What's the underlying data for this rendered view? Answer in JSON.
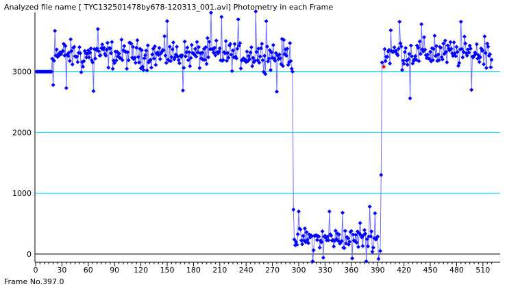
{
  "header": {
    "title": "Analyzed file name [ TYC132501478by678-120313_001.avi]    Photometry in each Frame"
  },
  "status": {
    "frame_label": "Frame No.397.0"
  },
  "colors": {
    "series": "#0000ff",
    "highlight": "#ff0000",
    "gridline": "#00e6ff",
    "axis": "#000000",
    "background": "#ffffff"
  },
  "chart_data": {
    "type": "line",
    "title": "Photometry in each Frame",
    "xlabel": "",
    "ylabel": "",
    "xlim": [
      0,
      520
    ],
    "ylim": [
      -150,
      3970
    ],
    "x_ticks": [
      0,
      30,
      60,
      90,
      120,
      150,
      180,
      210,
      240,
      270,
      300,
      330,
      360,
      390,
      420,
      450,
      480,
      510
    ],
    "y_ticks": [
      0,
      1000,
      2000,
      3000
    ],
    "grid": "horizontal at y ticks",
    "highlight_point": {
      "x": 397,
      "y": 3080
    },
    "series": [
      {
        "name": "",
        "segments": [
          {
            "x_start": 1,
            "x_end": 18,
            "base": 3000,
            "amp": 0
          },
          {
            "x_start": 19,
            "x_end": 294,
            "base": 3280,
            "amp": 260
          },
          {
            "x_start": 295,
            "x_end": 390,
            "base": 250,
            "amp": 190
          },
          {
            "x_start": 397,
            "x_end": 520,
            "base": 3300,
            "amp": 260
          }
        ],
        "points": [
          {
            "x": 20,
            "y": 2780
          },
          {
            "x": 22,
            "y": 3670
          },
          {
            "x": 35,
            "y": 2730
          },
          {
            "x": 52,
            "y": 2990
          },
          {
            "x": 66,
            "y": 2680
          },
          {
            "x": 71,
            "y": 3700
          },
          {
            "x": 150,
            "y": 3830
          },
          {
            "x": 168,
            "y": 2690
          },
          {
            "x": 200,
            "y": 3970
          },
          {
            "x": 212,
            "y": 3900
          },
          {
            "x": 231,
            "y": 3860
          },
          {
            "x": 251,
            "y": 3990
          },
          {
            "x": 263,
            "y": 3830
          },
          {
            "x": 275,
            "y": 2670
          },
          {
            "x": 293,
            "y": 3000
          },
          {
            "x": 294,
            "y": 730
          },
          {
            "x": 300,
            "y": 700
          },
          {
            "x": 316,
            "y": -120
          },
          {
            "x": 328,
            "y": -60
          },
          {
            "x": 335,
            "y": 700
          },
          {
            "x": 350,
            "y": 680
          },
          {
            "x": 361,
            "y": -70
          },
          {
            "x": 370,
            "y": 510
          },
          {
            "x": 377,
            "y": -120
          },
          {
            "x": 381,
            "y": 780
          },
          {
            "x": 387,
            "y": 670
          },
          {
            "x": 391,
            "y": -80
          },
          {
            "x": 393,
            "y": 50
          },
          {
            "x": 394,
            "y": 1300
          },
          {
            "x": 395,
            "y": 3150
          },
          {
            "x": 397,
            "y": 3080
          },
          {
            "x": 405,
            "y": 3680
          },
          {
            "x": 415,
            "y": 3820
          },
          {
            "x": 427,
            "y": 2560
          },
          {
            "x": 440,
            "y": 3780
          },
          {
            "x": 455,
            "y": 3590
          },
          {
            "x": 485,
            "y": 3820
          },
          {
            "x": 497,
            "y": 2700
          },
          {
            "x": 512,
            "y": 3580
          }
        ]
      }
    ]
  }
}
